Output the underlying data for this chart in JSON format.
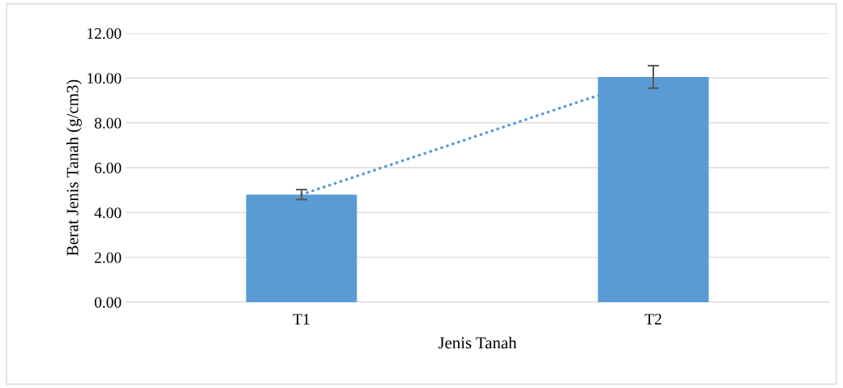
{
  "chart_data": {
    "type": "bar",
    "xlabel": "Jenis Tanah",
    "ylabel": "Berat Jenis Tanah (g/cm3)",
    "categories": [
      "T1",
      "T2"
    ],
    "series": [
      {
        "color": "#5b9bd5",
        "values": [
          4.8,
          10.05
        ],
        "errors": [
          0.22,
          0.5
        ]
      },
      {
        "type": "line",
        "color": "#5b9bd5",
        "values": [
          4.8,
          10.05
        ],
        "line_style": "dotted"
      }
    ],
    "ylim": [
      0,
      12
    ],
    "yticks": [
      {
        "value": 0,
        "label": "0.00"
      },
      {
        "value": 2,
        "label": "2.00"
      },
      {
        "value": 4,
        "label": "4.00"
      },
      {
        "value": 6,
        "label": "6.00"
      },
      {
        "value": 8,
        "label": "8.00"
      },
      {
        "value": 10,
        "label": "10.00"
      },
      {
        "value": 12,
        "label": "12.00"
      }
    ],
    "grid": "y",
    "legend": false
  }
}
